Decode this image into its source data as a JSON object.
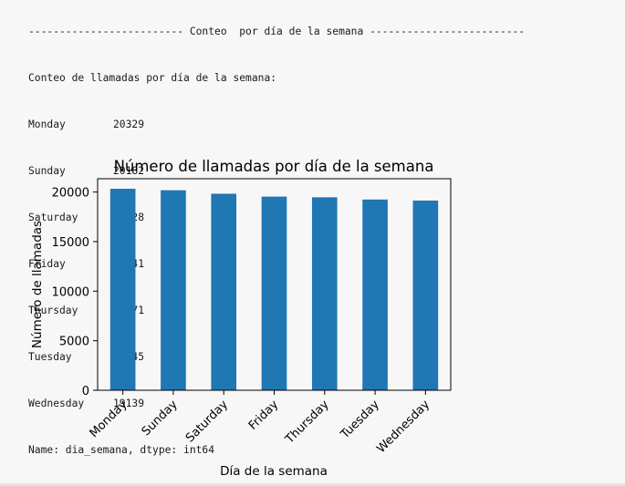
{
  "output": {
    "separator_line": "------------------------- Conteo  por día de la semana -------------------------",
    "header": "Conteo de llamadas por día de la semana:",
    "series_rows": [
      {
        "day": "Monday",
        "count": "20329"
      },
      {
        "day": "Sunday",
        "count": "20182"
      },
      {
        "day": "Saturday",
        "count": "19828"
      },
      {
        "day": "Friday",
        "count": "19541"
      },
      {
        "day": "Thursday",
        "count": "19471"
      },
      {
        "day": "Tuesday",
        "count": "19245"
      },
      {
        "day": "Wednesday",
        "count": "19139"
      }
    ],
    "footer": "Name: dia_semana, dtype: int64"
  },
  "chart_data": {
    "type": "bar",
    "title": "Número de llamadas por día de la semana",
    "xlabel": "Día de la semana",
    "ylabel": "Número de llamadas",
    "categories": [
      "Monday",
      "Sunday",
      "Saturday",
      "Friday",
      "Thursday",
      "Tuesday",
      "Wednesday"
    ],
    "values": [
      20329,
      20182,
      19828,
      19541,
      19471,
      19245,
      19139
    ],
    "ylim": [
      0,
      21345
    ],
    "yticks": [
      0,
      5000,
      10000,
      15000,
      20000
    ],
    "bar_color": "#1f77b4",
    "grid": false,
    "legend": "none"
  }
}
